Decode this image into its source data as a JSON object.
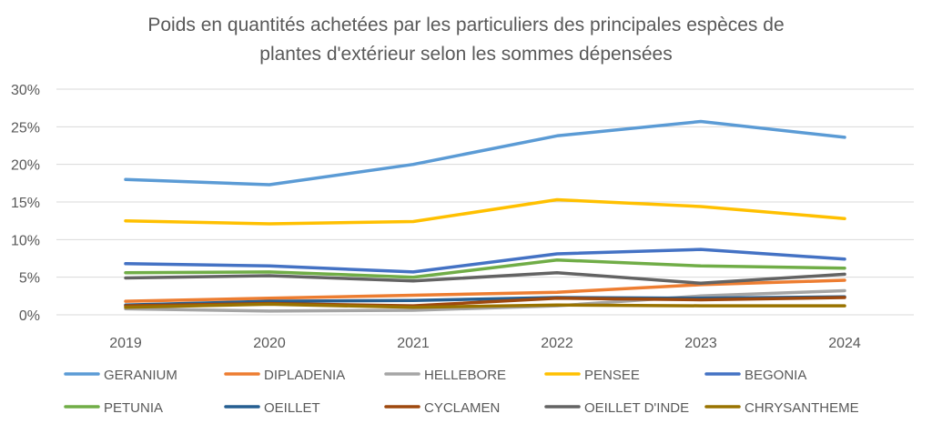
{
  "chart_data": {
    "type": "line",
    "title_lines": [
      "Poids en quantités achetées par les particuliers des principales espèces de",
      "plantes d'extérieur selon les sommes dépensées"
    ],
    "xlabel": "",
    "ylabel": "",
    "x": [
      "2019",
      "2020",
      "2021",
      "2022",
      "2023",
      "2024"
    ],
    "ylim": [
      0,
      30
    ],
    "yticks": [
      0,
      5,
      10,
      15,
      20,
      25,
      30
    ],
    "ytick_labels": [
      "0%",
      "5%",
      "10%",
      "15%",
      "20%",
      "25%",
      "30%"
    ],
    "grid": true,
    "legend_position": "bottom",
    "series": [
      {
        "name": "GERANIUM",
        "color": "#5b9bd5",
        "values": [
          18.0,
          17.3,
          20.0,
          23.8,
          25.7,
          23.6
        ]
      },
      {
        "name": "DIPLADENIA",
        "color": "#ed7d31",
        "values": [
          1.8,
          2.2,
          2.6,
          3.0,
          4.0,
          4.6
        ]
      },
      {
        "name": "HELLEBORE",
        "color": "#a5a5a5",
        "values": [
          0.8,
          0.5,
          0.6,
          1.2,
          2.5,
          3.2
        ]
      },
      {
        "name": "PENSEE",
        "color": "#ffc000",
        "values": [
          12.5,
          12.1,
          12.4,
          15.3,
          14.4,
          12.8
        ]
      },
      {
        "name": "BEGONIA",
        "color": "#4472c4",
        "values": [
          6.8,
          6.5,
          5.7,
          8.1,
          8.7,
          7.4
        ]
      },
      {
        "name": "PETUNIA",
        "color": "#70ad47",
        "values": [
          5.6,
          5.7,
          5.0,
          7.3,
          6.5,
          6.2
        ]
      },
      {
        "name": "OEILLET",
        "color": "#255e91",
        "values": [
          1.3,
          1.8,
          1.9,
          2.3,
          2.2,
          2.4
        ]
      },
      {
        "name": "CYCLAMEN",
        "color": "#9e480e",
        "values": [
          1.2,
          1.5,
          1.2,
          2.2,
          2.0,
          2.3
        ]
      },
      {
        "name": "OEILLET D'INDE",
        "color": "#636363",
        "values": [
          4.9,
          5.2,
          4.5,
          5.6,
          4.2,
          5.4
        ]
      },
      {
        "name": "CHRYSANTHEME",
        "color": "#997300",
        "values": [
          1.0,
          1.4,
          1.0,
          1.3,
          1.2,
          1.2
        ]
      }
    ]
  }
}
